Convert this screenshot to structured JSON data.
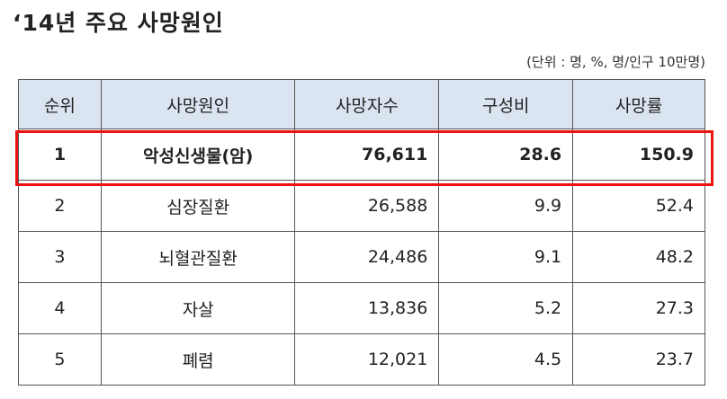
{
  "header": {
    "title": "‘14년 주요 사망원인",
    "unit_note": "(단위 : 명, %, 명/인구 10만명)"
  },
  "table": {
    "columns": [
      "순위",
      "사망원인",
      "사망자수",
      "구성비",
      "사망률"
    ],
    "rows": [
      [
        "1",
        "악성신생물(암)",
        "76,611",
        "28.6",
        "150.9"
      ],
      [
        "2",
        "심장질환",
        "26,588",
        "9.9",
        "52.4"
      ],
      [
        "3",
        "뇌혈관질환",
        "24,486",
        "9.1",
        "48.2"
      ],
      [
        "4",
        "자살",
        "13,836",
        "5.2",
        "27.3"
      ],
      [
        "5",
        "폐렴",
        "12,021",
        "4.5",
        "23.7"
      ]
    ]
  }
}
